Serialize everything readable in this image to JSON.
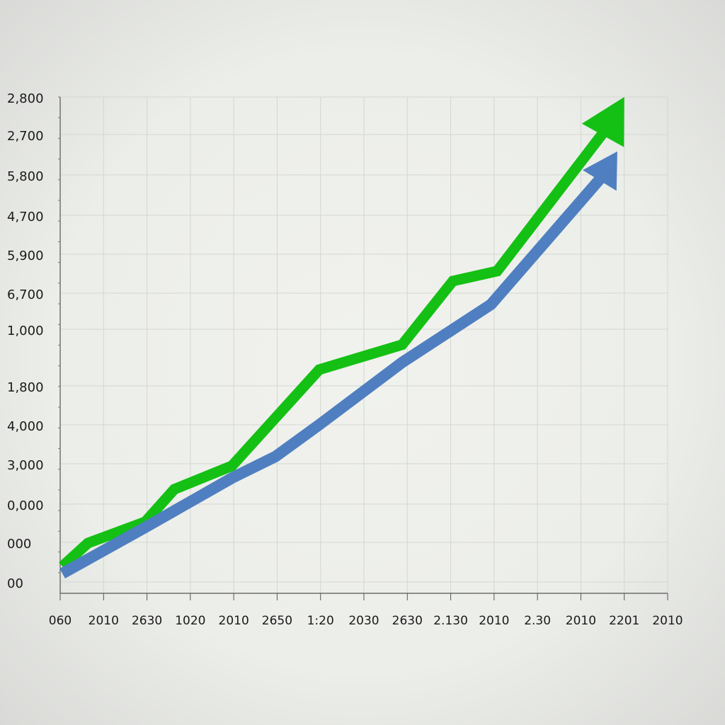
{
  "chart_data": {
    "type": "line",
    "categories": [
      "060",
      "2010",
      "2630",
      "1020",
      "2010",
      "2650",
      "1:20",
      "2030",
      "2630",
      "2.130",
      "2010",
      "2.30",
      "2010",
      "2201",
      "2010"
    ],
    "y_axis_labels": [
      "2,800",
      "2,700",
      "5,800",
      "4,700",
      "5,900",
      "6,700",
      "1,000",
      "1,800",
      "4,000",
      "3,000",
      "0,000",
      "000",
      "00"
    ],
    "ylim": [
      0,
      2800
    ],
    "grid": true,
    "series": [
      {
        "color": "#14c014",
        "x": [
          0.05,
          0.64,
          1.96,
          2.63,
          3.96,
          5.97,
          7.88,
          9.05,
          10.07,
          12.61,
          13.0
        ],
        "values": [
          102,
          236,
          358,
          545,
          680,
          1233,
          1376,
          1742,
          1799,
          2625,
          2800
        ]
      },
      {
        "color": "#4f7fc0",
        "x": [
          0.05,
          1.96,
          3.96,
          4.96,
          5.97,
          7.88,
          9.93,
          12.48,
          12.84
        ],
        "values": [
          61,
          326,
          610,
          733,
          916,
          1274,
          1608,
          2340,
          2487
        ]
      }
    ]
  }
}
